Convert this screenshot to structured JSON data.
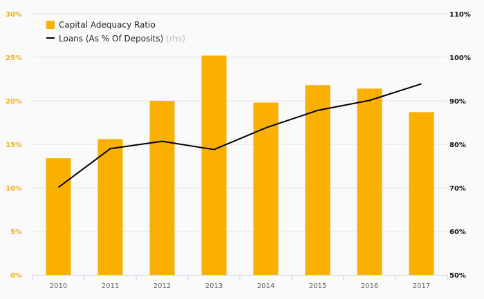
{
  "chart_data": {
    "type": "bar",
    "categories": [
      "2010",
      "2011",
      "2012",
      "2013",
      "2014",
      "2015",
      "2016",
      "2017"
    ],
    "series": [
      {
        "name": "Capital Adequacy Ratio",
        "type": "bar",
        "axis": "left",
        "color": "#f9b000",
        "values": [
          13.4,
          15.6,
          20.0,
          25.2,
          19.8,
          21.8,
          21.4,
          18.7
        ]
      },
      {
        "name": "Loans (As % Of Deposits)",
        "type": "line",
        "axis": "right",
        "color": "#000000",
        "values": [
          70.1,
          79.0,
          80.7,
          78.8,
          83.8,
          87.8,
          90.1,
          93.9
        ]
      }
    ],
    "legend_suffix": "(rhs)",
    "left_axis": {
      "ylim": [
        0,
        30
      ],
      "ticks": [
        "0%",
        "5%",
        "10%",
        "15%",
        "20%",
        "25%",
        "30%"
      ],
      "values": [
        0,
        5,
        10,
        15,
        20,
        25,
        30
      ]
    },
    "right_axis": {
      "ylim": [
        50,
        110
      ],
      "ticks": [
        "50%",
        "60%",
        "70%",
        "80%",
        "90%",
        "100%",
        "110%"
      ],
      "values": [
        50,
        60,
        70,
        80,
        90,
        100,
        110
      ]
    },
    "grid": true,
    "legend_position": "top-left"
  }
}
